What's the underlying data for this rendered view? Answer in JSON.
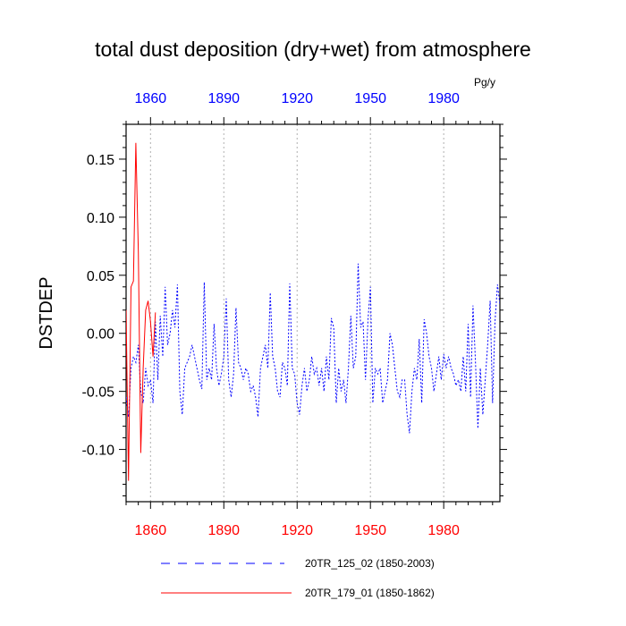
{
  "chart_data": {
    "type": "line",
    "title": "total dust deposition (dry+wet) from atmosphere",
    "ylabel": "DSTDEP",
    "units": "Pg/y",
    "xlim": [
      1850,
      2003
    ],
    "ylim": [
      -0.145,
      0.18
    ],
    "x_ticks": [
      1860,
      1890,
      1920,
      1950,
      1980
    ],
    "x_tick_labels": [
      "1860",
      "1890",
      "1920",
      "1950",
      "1980"
    ],
    "y_ticks": [
      0.15,
      0.1,
      0.05,
      0.0,
      -0.05,
      -0.1
    ],
    "y_tick_labels": [
      "0.15",
      "0.10",
      "0.05",
      "0.00",
      "-0.05",
      "-0.10"
    ],
    "top_axis_color": "#0000ff",
    "bottom_axis_color": "#ff0000",
    "series": [
      {
        "name": "20TR_125_02 (1850-2003)",
        "color": "#0000ff",
        "style": "dashed",
        "x": [
          1850,
          1851,
          1852,
          1853,
          1854,
          1855,
          1856,
          1857,
          1858,
          1859,
          1860,
          1861,
          1862,
          1863,
          1864,
          1865,
          1866,
          1867,
          1868,
          1869,
          1870,
          1871,
          1872,
          1873,
          1874,
          1875,
          1876,
          1877,
          1878,
          1879,
          1880,
          1881,
          1882,
          1883,
          1884,
          1885,
          1886,
          1887,
          1888,
          1889,
          1890,
          1891,
          1892,
          1893,
          1894,
          1895,
          1896,
          1897,
          1898,
          1899,
          1900,
          1901,
          1902,
          1903,
          1904,
          1905,
          1906,
          1907,
          1908,
          1909,
          1910,
          1911,
          1912,
          1913,
          1914,
          1915,
          1916,
          1917,
          1918,
          1919,
          1920,
          1921,
          1922,
          1923,
          1924,
          1925,
          1926,
          1927,
          1928,
          1929,
          1930,
          1931,
          1932,
          1933,
          1934,
          1935,
          1936,
          1937,
          1938,
          1939,
          1940,
          1941,
          1942,
          1943,
          1944,
          1945,
          1946,
          1947,
          1948,
          1949,
          1950,
          1951,
          1952,
          1953,
          1954,
          1955,
          1956,
          1957,
          1958,
          1959,
          1960,
          1961,
          1962,
          1963,
          1964,
          1965,
          1966,
          1967,
          1968,
          1969,
          1970,
          1971,
          1972,
          1973,
          1974,
          1975,
          1976,
          1977,
          1978,
          1979,
          1980,
          1981,
          1982,
          1983,
          1984,
          1985,
          1986,
          1987,
          1988,
          1989,
          1990,
          1991,
          1992,
          1993,
          1994,
          1995,
          1996,
          1997,
          1998,
          1999,
          2000,
          2001,
          2002,
          2003
        ],
        "values": [
          -0.055,
          -0.072,
          -0.03,
          -0.02,
          -0.025,
          -0.01,
          -0.05,
          -0.06,
          -0.03,
          -0.045,
          -0.04,
          -0.06,
          0.01,
          -0.04,
          0.015,
          -0.02,
          0.04,
          -0.01,
          0.0,
          0.02,
          0.005,
          0.042,
          -0.05,
          -0.07,
          -0.03,
          -0.025,
          -0.02,
          -0.01,
          -0.02,
          -0.03,
          -0.04,
          -0.048,
          0.044,
          -0.04,
          -0.03,
          -0.04,
          0.008,
          -0.03,
          -0.045,
          -0.035,
          -0.02,
          0.03,
          -0.04,
          -0.055,
          -0.035,
          0.022,
          -0.025,
          -0.03,
          -0.04,
          -0.03,
          -0.035,
          -0.05,
          -0.045,
          -0.055,
          -0.072,
          -0.03,
          -0.02,
          -0.01,
          -0.03,
          0.035,
          -0.02,
          -0.03,
          -0.05,
          -0.055,
          -0.025,
          -0.03,
          -0.045,
          0.043,
          -0.03,
          -0.035,
          -0.06,
          -0.07,
          -0.045,
          -0.03,
          -0.05,
          -0.04,
          -0.02,
          -0.035,
          -0.03,
          -0.045,
          -0.03,
          -0.05,
          -0.02,
          -0.04,
          0.013,
          0.005,
          -0.06,
          -0.03,
          -0.05,
          -0.04,
          -0.06,
          -0.03,
          0.015,
          -0.03,
          -0.02,
          0.06,
          0.005,
          0.01,
          -0.04,
          0.012,
          0.04,
          -0.06,
          -0.03,
          -0.035,
          -0.03,
          -0.06,
          -0.05,
          -0.04,
          0.0,
          -0.01,
          -0.03,
          -0.05,
          -0.055,
          -0.04,
          -0.04,
          -0.07,
          -0.086,
          -0.05,
          -0.03,
          -0.04,
          -0.005,
          -0.06,
          0.012,
          0.0,
          -0.02,
          -0.03,
          -0.05,
          -0.035,
          -0.02,
          -0.04,
          -0.018,
          -0.03,
          -0.02,
          -0.03,
          -0.035,
          -0.045,
          -0.04,
          -0.05,
          -0.02,
          -0.05,
          0.008,
          -0.055,
          0.024,
          -0.025,
          -0.082,
          -0.03,
          -0.07,
          -0.04,
          -0.01,
          0.028,
          -0.06,
          0.01,
          0.042,
          0.025
        ]
      },
      {
        "name": "20TR_179_01 (1850-1862)",
        "color": "#ff0000",
        "style": "solid",
        "x": [
          1850,
          1851,
          1852,
          1853,
          1854,
          1855,
          1856,
          1857,
          1858,
          1859,
          1860,
          1861,
          1862
        ],
        "values": [
          0.02,
          -0.127,
          0.04,
          0.045,
          0.164,
          0.07,
          -0.103,
          -0.03,
          0.02,
          0.028,
          0.01,
          -0.02,
          0.018
        ]
      }
    ],
    "legend_position": "bottom"
  }
}
